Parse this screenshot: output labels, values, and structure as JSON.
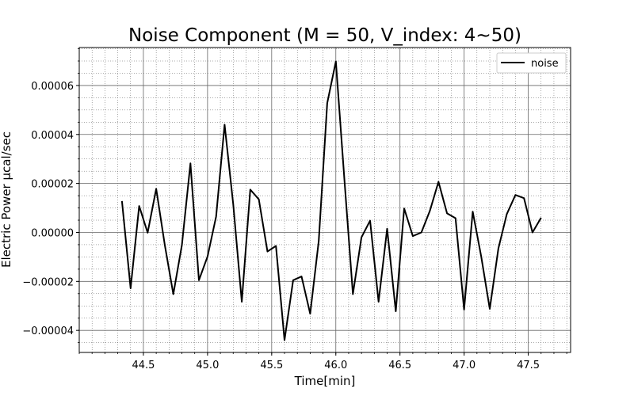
{
  "chart_data": {
    "type": "line",
    "title": "Noise Component (M = 50, V_index: 4~50)",
    "xlabel": "Time[min]",
    "ylabel": "Electric Power µcal/sec",
    "xlim": [
      44.0,
      47.83
    ],
    "ylim": [
      -4.9e-05,
      7.55e-05
    ],
    "xticks": [
      44.5,
      45.0,
      45.5,
      46.0,
      46.5,
      47.0,
      47.5
    ],
    "xtick_labels": [
      "44.5",
      "45.0",
      "45.5",
      "46.0",
      "46.5",
      "47.0",
      "47.5"
    ],
    "yticks": [
      -4e-05,
      -2e-05,
      0.0,
      2e-05,
      4e-05,
      6e-05
    ],
    "ytick_labels": [
      "−0.00004",
      "−0.00002",
      "0.00000",
      "0.00002",
      "0.00004",
      "0.00006"
    ],
    "grid": "major and minor",
    "legend_position": "top-right",
    "series": [
      {
        "name": "noise",
        "color": "#000000",
        "x": [
          44.333,
          44.4,
          44.467,
          44.533,
          44.6,
          44.667,
          44.733,
          44.8,
          44.867,
          44.933,
          45.0,
          45.067,
          45.133,
          45.2,
          45.267,
          45.333,
          45.4,
          45.467,
          45.533,
          45.6,
          45.667,
          45.733,
          45.8,
          45.867,
          45.933,
          46.0,
          46.067,
          46.133,
          46.2,
          46.267,
          46.333,
          46.4,
          46.467,
          46.533,
          46.6,
          46.667,
          46.733,
          46.8,
          46.867,
          46.933,
          47.0,
          47.067,
          47.133,
          47.2,
          47.267,
          47.333,
          47.4,
          47.467,
          47.533,
          47.6
        ],
        "y": [
          1.28e-05,
          -2.28e-05,
          1.08e-05,
          -1e-07,
          1.78e-05,
          -5.2e-06,
          -2.52e-05,
          -5.2e-06,
          2.82e-05,
          -1.95e-05,
          -9.8e-06,
          6.5e-06,
          4.4e-05,
          1.15e-05,
          -2.83e-05,
          1.75e-05,
          1.35e-05,
          -7.8e-06,
          -5.5e-06,
          -4.4e-05,
          -1.95e-05,
          -1.8e-05,
          -3.32e-05,
          -3.5e-06,
          5.28e-05,
          6.98e-05,
          2.15e-05,
          -2.52e-05,
          -2e-06,
          4.8e-06,
          -2.83e-05,
          1.5e-06,
          -3.22e-05,
          9.8e-06,
          -1.5e-06,
          0.0,
          8.8e-06,
          2.07e-05,
          7.8e-06,
          5.8e-06,
          -3.15e-05,
          8.5e-06,
          -9.8e-06,
          -3.12e-05,
          -6.5e-06,
          7.5e-06,
          1.53e-05,
          1.4e-05,
          0.0,
          6e-06
        ]
      }
    ]
  }
}
